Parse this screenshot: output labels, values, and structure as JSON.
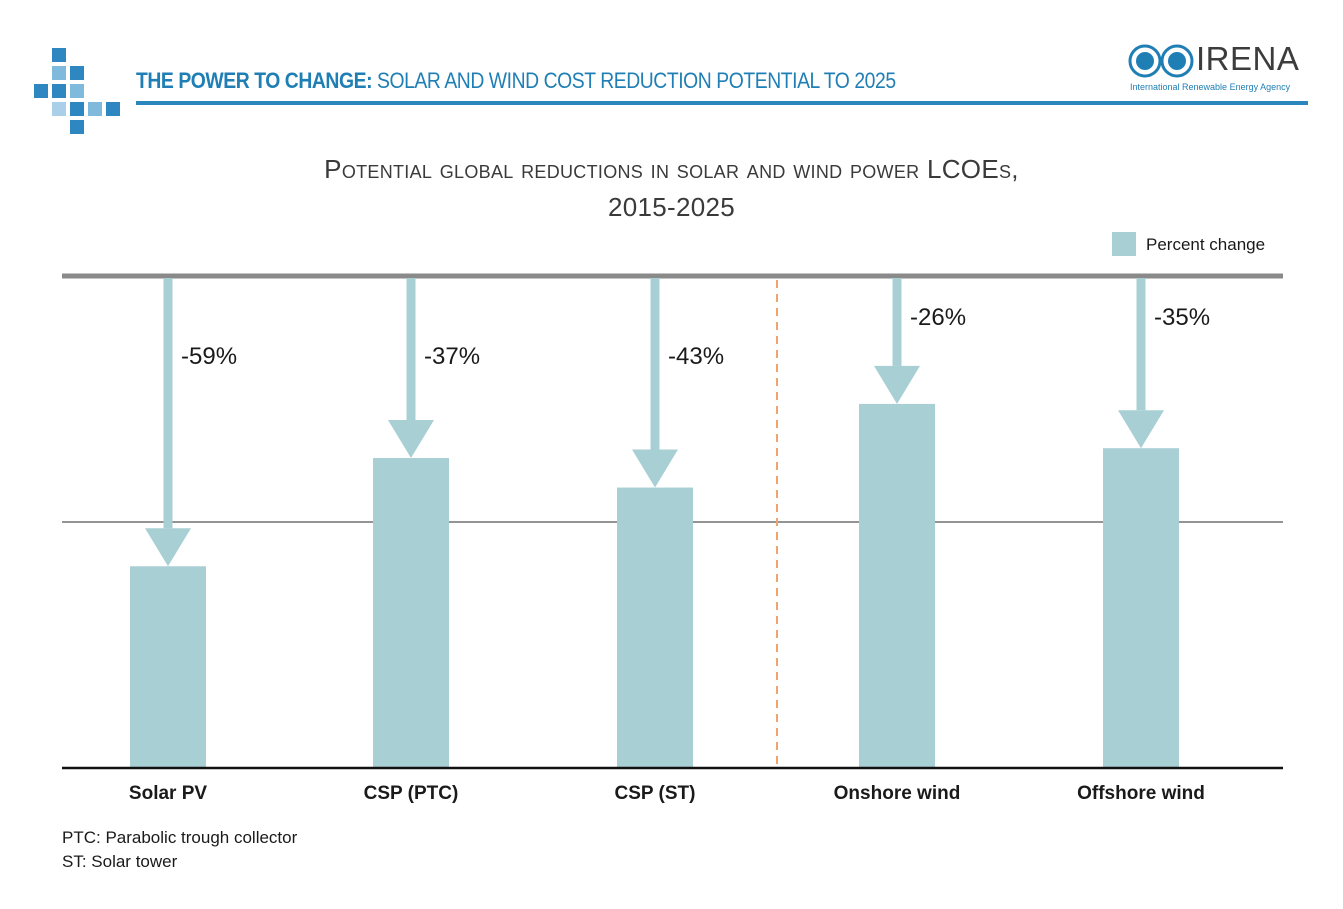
{
  "header": {
    "title_bold": "THE POWER TO CHANGE:",
    "title_rest": " SOLAR AND WIND COST REDUCTION POTENTIAL TO 2025",
    "logo_name": "IRENA",
    "logo_subtitle": "International Renewable Energy Agency",
    "accent_color": "#2a86bd"
  },
  "chart_data": {
    "type": "bar",
    "title_line1": "Potential global reductions in solar and wind power LCOEs,",
    "title_line2": "2015-2025",
    "legend": [
      "Percent change"
    ],
    "categories": [
      "Solar PV",
      "CSP (PTC)",
      "CSP (ST)",
      "Onshore wind",
      "Offshore wind"
    ],
    "series": [
      {
        "name": "Percent change",
        "values": [
          -59,
          -37,
          -43,
          -26,
          -35
        ],
        "labels": [
          "-59%",
          "-37%",
          "-43%",
          "-26%",
          "-35%"
        ],
        "color": "#a8cfd4"
      }
    ],
    "ylim": [
      -100,
      0
    ],
    "reference_line": -50,
    "group_divider": "between CSP (ST) and Onshore wind",
    "divider_color": "#f0a36c",
    "grid": false
  },
  "notes": [
    "PTC: Parabolic trough collector",
    "ST: Solar tower"
  ]
}
